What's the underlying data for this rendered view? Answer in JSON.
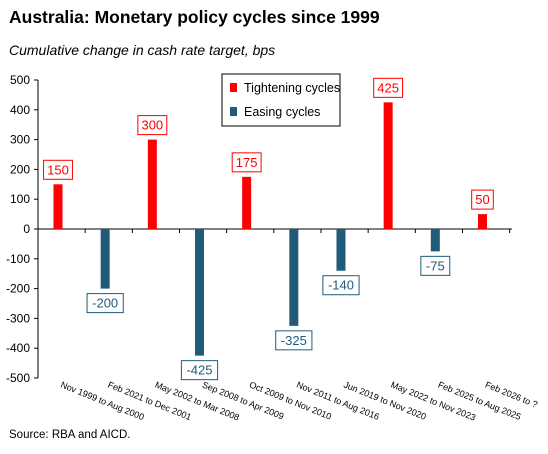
{
  "title": "Australia: Monetary policy cycles since 1999",
  "subtitle": "Cumulative change in cash rate target, bps",
  "source": "Source: RBA and AICD.",
  "chart_data": {
    "type": "bar",
    "title": "Australia: Monetary policy cycles since 1999",
    "ylabel": "Cumulative change in cash rate target, bps",
    "ylim": [
      -500,
      500
    ],
    "yticks": [
      500,
      400,
      300,
      200,
      100,
      0,
      -100,
      -200,
      -300,
      -400,
      -500
    ],
    "categories": [
      "Nov 1999 to Aug 2000",
      "Feb 2021 to Dec 2001",
      "May 2002 to Mar 2008",
      "Sep 2008 to Apr 2009",
      "Oct 2009 to Nov 2010",
      "Nov 2011 to Aug 2016",
      "Jun 2019 to Nov 2020",
      "May 2022 to Nov 2023",
      "Feb 2025 to Aug 2025",
      "Feb 2026 to ?"
    ],
    "series": [
      {
        "name": "Tightening cycles",
        "color": "#ff0000",
        "values": [
          150,
          null,
          300,
          null,
          175,
          null,
          null,
          425,
          null,
          50
        ]
      },
      {
        "name": "Easing cycles",
        "color": "#1f5c7a",
        "values": [
          null,
          -200,
          null,
          -425,
          null,
          -325,
          -140,
          null,
          -75,
          null
        ]
      }
    ],
    "data_labels": [
      "150",
      "-200",
      "300",
      "-425",
      "175",
      "-325",
      "-140",
      "425",
      "-75",
      "50"
    ],
    "legend_position": "top-center",
    "grid": false
  }
}
